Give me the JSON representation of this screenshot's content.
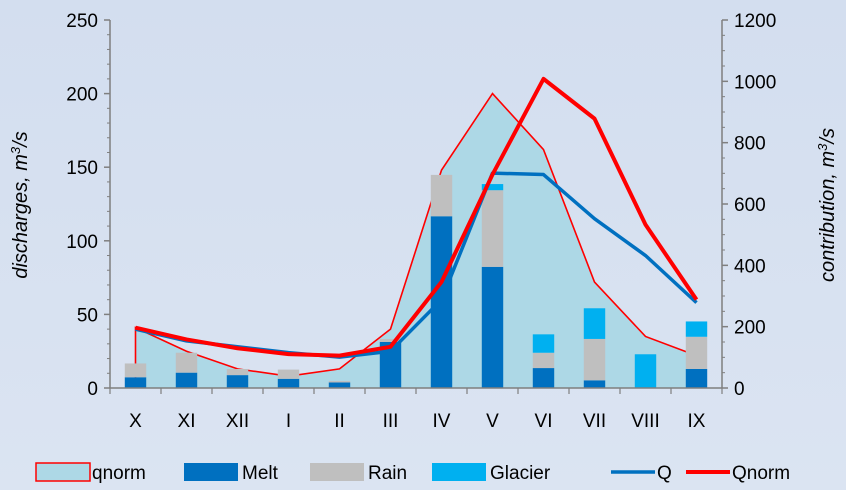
{
  "chart_data": {
    "type": "bar",
    "categories": [
      "X",
      "XI",
      "XII",
      "I",
      "II",
      "III",
      "IV",
      "V",
      "VI",
      "VII",
      "VIII",
      "IX"
    ],
    "ylabel_left": "discharges, m³/s",
    "ylabel_right": "contribution, m³/s",
    "ylim_left": [
      0,
      250
    ],
    "ylim_right": [
      0,
      1200
    ],
    "yticks_left": [
      "0",
      "50",
      "100",
      "150",
      "200",
      "250"
    ],
    "yticks_right": [
      "0",
      "200",
      "400",
      "600",
      "800",
      "1000",
      "1200"
    ],
    "grid": false,
    "legend_position": "bottom",
    "series": [
      {
        "name": "qnorm",
        "kind": "area",
        "axis": "left",
        "color": "#add8e6",
        "edge_color": "#ff0000",
        "values": [
          41,
          25,
          13,
          8,
          13,
          40,
          148,
          200,
          162,
          72,
          35,
          22
        ]
      },
      {
        "name": "Melt",
        "kind": "stacked-bar",
        "axis": "right",
        "color": "#0070c0",
        "values": [
          35,
          50,
          42,
          30,
          18,
          150,
          560,
          395,
          65,
          25,
          0,
          62
        ]
      },
      {
        "name": "Rain",
        "kind": "stacked-bar",
        "axis": "right",
        "color": "#bfbfbf",
        "values": [
          45,
          65,
          20,
          30,
          5,
          10,
          135,
          250,
          50,
          135,
          0,
          105
        ]
      },
      {
        "name": "Glacier",
        "kind": "stacked-bar",
        "axis": "right",
        "color": "#00b0f0",
        "values": [
          0,
          0,
          0,
          0,
          0,
          0,
          0,
          20,
          60,
          100,
          110,
          50
        ]
      },
      {
        "name": "Q",
        "kind": "line",
        "axis": "left",
        "color": "#0070c0",
        "width": 3.5,
        "values": [
          40,
          32,
          28,
          24,
          21,
          25,
          60,
          146,
          145,
          115,
          90,
          58
        ]
      },
      {
        "name": "Qnorm",
        "kind": "line",
        "axis": "left",
        "color": "#ff0000",
        "width": 4,
        "values": [
          41,
          33,
          27,
          23,
          22,
          28,
          72,
          145,
          210,
          183,
          111,
          60
        ]
      }
    ]
  }
}
